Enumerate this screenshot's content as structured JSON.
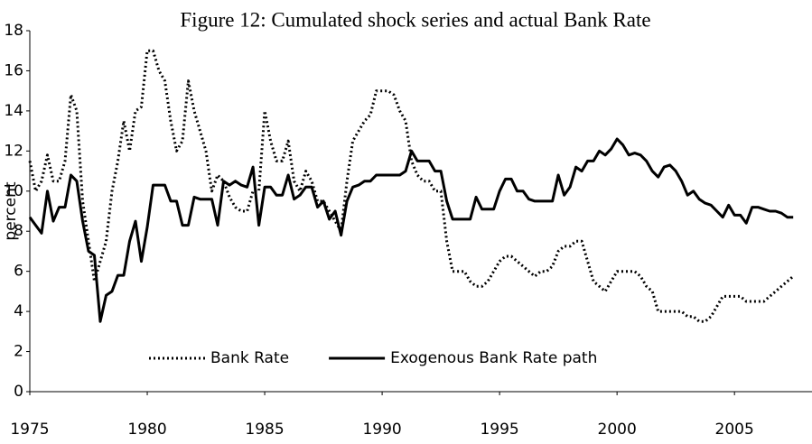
{
  "chart_data": {
    "type": "line",
    "title": "Figure 12: Cumulated shock series and actual Bank Rate",
    "y_label": "percent",
    "x": [
      1975,
      1975.25,
      1975.5,
      1975.75,
      1976,
      1976.25,
      1976.5,
      1976.75,
      1977,
      1977.25,
      1977.5,
      1977.75,
      1978,
      1978.25,
      1978.5,
      1978.75,
      1979,
      1979.25,
      1979.5,
      1979.75,
      1980,
      1980.25,
      1980.5,
      1980.75,
      1981,
      1981.25,
      1981.5,
      1981.75,
      1982,
      1982.25,
      1982.5,
      1982.75,
      1983,
      1983.25,
      1983.5,
      1983.75,
      1984,
      1984.25,
      1984.5,
      1984.75,
      1985,
      1985.25,
      1985.5,
      1985.75,
      1986,
      1986.25,
      1986.5,
      1986.75,
      1987,
      1987.25,
      1987.5,
      1987.75,
      1988,
      1988.25,
      1988.5,
      1988.75,
      1989,
      1989.25,
      1989.5,
      1989.75,
      1990,
      1990.25,
      1990.5,
      1990.75,
      1991,
      1991.25,
      1991.5,
      1991.75,
      1992,
      1992.25,
      1992.5,
      1992.75,
      1993,
      1993.25,
      1993.5,
      1993.75,
      1994,
      1994.25,
      1994.5,
      1994.75,
      1995,
      1995.25,
      1995.5,
      1995.75,
      1996,
      1996.25,
      1996.5,
      1996.75,
      1997,
      1997.25,
      1997.5,
      1997.75,
      1998,
      1998.25,
      1998.5,
      1998.75,
      1999,
      1999.25,
      1999.5,
      1999.75,
      2000,
      2000.25,
      2000.5,
      2000.75,
      2001,
      2001.25,
      2001.5,
      2001.75,
      2002,
      2002.25,
      2002.5,
      2002.75,
      2003,
      2003.25,
      2003.5,
      2003.75,
      2004,
      2004.25,
      2004.5,
      2004.75,
      2005,
      2005.25,
      2005.5,
      2005.75,
      2006,
      2006.25,
      2006.5,
      2006.75,
      2007,
      2007.25,
      2007.5
    ],
    "series": [
      {
        "name": "Bank Rate",
        "color": "#000000",
        "style": "dotted",
        "values": [
          11.5,
          10,
          10.5,
          11.8,
          10.5,
          10.5,
          11.5,
          14.8,
          14,
          9.5,
          7.5,
          5.5,
          6.5,
          7.5,
          10,
          11.5,
          13.5,
          12,
          14,
          14.2,
          17,
          17,
          16,
          15.5,
          13.5,
          12,
          12.5,
          15.5,
          14,
          13,
          12,
          10,
          10.8,
          10.5,
          9.7,
          9.2,
          9,
          9,
          10,
          10,
          14,
          12.5,
          11.5,
          11.5,
          12.5,
          10.5,
          10,
          11,
          10.5,
          9.5,
          9.5,
          9,
          8.5,
          8,
          10.5,
          12.5,
          13,
          13.5,
          13.8,
          15,
          15,
          15,
          14.8,
          14,
          13.5,
          11.5,
          10.8,
          10.5,
          10.5,
          10,
          10,
          7.5,
          6,
          6,
          6,
          5.5,
          5.25,
          5.25,
          5.5,
          6,
          6.5,
          6.75,
          6.75,
          6.5,
          6.25,
          6,
          5.75,
          6,
          6,
          6.25,
          7,
          7.25,
          7.25,
          7.5,
          7.5,
          6.5,
          5.5,
          5.25,
          5,
          5.5,
          6,
          6,
          6,
          6,
          5.75,
          5.25,
          5,
          4,
          4,
          4,
          4,
          4,
          3.75,
          3.75,
          3.5,
          3.5,
          3.75,
          4.25,
          4.75,
          4.75,
          4.75,
          4.75,
          4.5,
          4.5,
          4.5,
          4.5,
          4.75,
          5,
          5.25,
          5.5,
          5.75
        ]
      },
      {
        "name": "Exogenous Bank Rate path",
        "color": "#000000",
        "style": "solid",
        "values": [
          8.7,
          8.3,
          7.9,
          10,
          8.5,
          9.2,
          9.2,
          10.8,
          10.5,
          8.5,
          7,
          6.8,
          3.5,
          4.8,
          5,
          5.8,
          5.8,
          7.5,
          8.5,
          6.5,
          8.2,
          10.3,
          10.3,
          10.3,
          9.5,
          9.5,
          8.3,
          8.3,
          9.7,
          9.6,
          9.6,
          9.6,
          8.3,
          10.5,
          10.3,
          10.5,
          10.3,
          10.2,
          11.2,
          8.3,
          10.2,
          10.2,
          9.8,
          9.8,
          10.8,
          9.6,
          9.8,
          10.2,
          10.2,
          9.2,
          9.5,
          8.6,
          9,
          7.8,
          9.5,
          10.2,
          10.3,
          10.5,
          10.5,
          10.8,
          10.8,
          10.8,
          10.8,
          10.8,
          11,
          12,
          11.5,
          11.5,
          11.5,
          11,
          11,
          9.5,
          8.6,
          8.6,
          8.6,
          8.6,
          9.7,
          9.1,
          9.1,
          9.1,
          10,
          10.6,
          10.6,
          10,
          10,
          9.6,
          9.5,
          9.5,
          9.5,
          9.5,
          10.8,
          9.8,
          10.2,
          11.2,
          11,
          11.5,
          11.5,
          12,
          11.8,
          12.1,
          12.6,
          12.3,
          11.8,
          11.9,
          11.8,
          11.5,
          11,
          10.7,
          11.2,
          11.3,
          11,
          10.5,
          9.8,
          10,
          9.6,
          9.4,
          9.3,
          9,
          8.7,
          9.3,
          8.8,
          8.8,
          8.4,
          9.2,
          9.2,
          9.1,
          9,
          9,
          8.9,
          8.7,
          8.7
        ]
      }
    ],
    "xlim": [
      1975,
      2008.3
    ],
    "xticks": [
      1975,
      1980,
      1985,
      1990,
      1995,
      2000,
      2005
    ],
    "ylim": [
      0,
      18
    ],
    "yticks": [
      0,
      2,
      4,
      6,
      8,
      10,
      12,
      14,
      16,
      18
    ],
    "legend": "lower left"
  }
}
